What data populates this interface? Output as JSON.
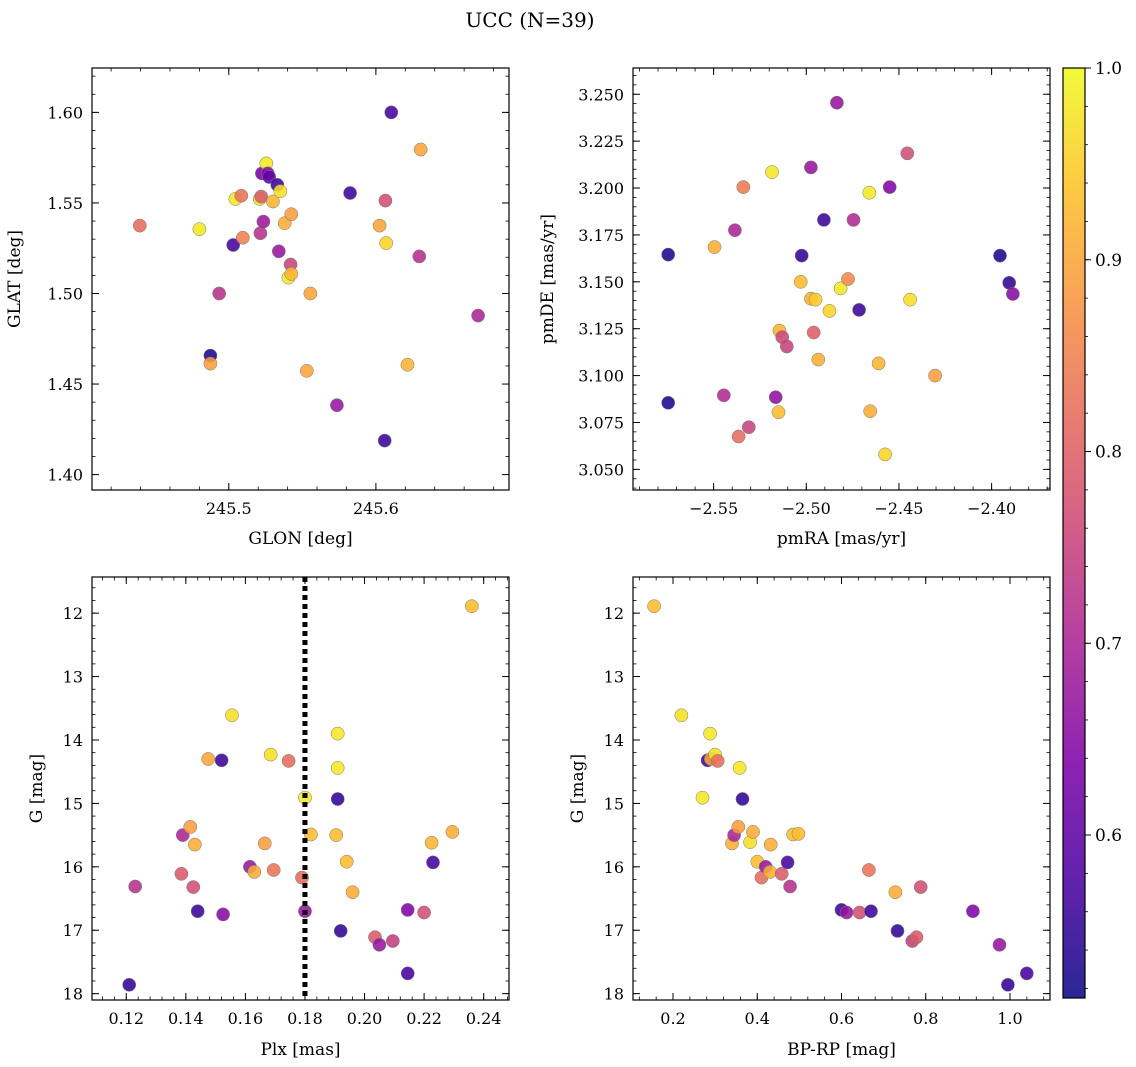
{
  "figure_title": "UCC (N=39)",
  "colors": {
    "colormap": "plasma",
    "background": "#ffffff",
    "axis": "#000000",
    "marker_edge": "#7a7a7a"
  },
  "chart_data": [
    {
      "type": "scatter",
      "xlabel": "GLON [deg]",
      "ylabel": "GLAT [deg]",
      "xlim": [
        245.407,
        245.6905
      ],
      "ylim": [
        1.3915,
        1.6245
      ],
      "xticks": [
        245.5,
        245.6
      ],
      "yticks": [
        1.4,
        1.45,
        1.5,
        1.55,
        1.6
      ],
      "xtick_labels": [
        "245.5",
        "245.6"
      ],
      "ytick_labels": [
        "1.40",
        "1.45",
        "1.50",
        "1.55",
        "1.60"
      ],
      "points": [
        {
          "x": 245.4395,
          "y": 1.5375,
          "c": 0.82
        },
        {
          "x": 245.48,
          "y": 1.5355,
          "c": 0.98
        },
        {
          "x": 245.4875,
          "y": 1.4657,
          "c": 0.53
        },
        {
          "x": 245.4875,
          "y": 1.4613,
          "c": 0.89
        },
        {
          "x": 245.4935,
          "y": 1.5,
          "c": 0.72
        },
        {
          "x": 245.503,
          "y": 1.5268,
          "c": 0.57
        },
        {
          "x": 245.5045,
          "y": 1.5522,
          "c": 0.98
        },
        {
          "x": 245.5085,
          "y": 1.554,
          "c": 0.83
        },
        {
          "x": 245.5095,
          "y": 1.5308,
          "c": 0.85
        },
        {
          "x": 245.521,
          "y": 1.5522,
          "c": 0.97
        },
        {
          "x": 245.5215,
          "y": 1.5333,
          "c": 0.72
        },
        {
          "x": 245.522,
          "y": 1.5535,
          "c": 0.79
        },
        {
          "x": 245.5225,
          "y": 1.5663,
          "c": 0.63
        },
        {
          "x": 245.5235,
          "y": 1.5397,
          "c": 0.68
        },
        {
          "x": 245.5255,
          "y": 1.5718,
          "c": 0.98
        },
        {
          "x": 245.5265,
          "y": 1.5663,
          "c": 0.65
        },
        {
          "x": 245.5275,
          "y": 1.5643,
          "c": 0.6
        },
        {
          "x": 245.53,
          "y": 1.5508,
          "c": 0.92
        },
        {
          "x": 245.533,
          "y": 1.56,
          "c": 0.56
        },
        {
          "x": 245.534,
          "y": 1.5233,
          "c": 0.67
        },
        {
          "x": 245.535,
          "y": 1.5565,
          "c": 0.97
        },
        {
          "x": 245.538,
          "y": 1.5388,
          "c": 0.91
        },
        {
          "x": 245.5405,
          "y": 1.5088,
          "c": 0.98
        },
        {
          "x": 245.542,
          "y": 1.516,
          "c": 0.75
        },
        {
          "x": 245.5425,
          "y": 1.5108,
          "c": 0.92
        },
        {
          "x": 245.5425,
          "y": 1.5438,
          "c": 0.89
        },
        {
          "x": 245.553,
          "y": 1.4573,
          "c": 0.9
        },
        {
          "x": 245.5555,
          "y": 1.5,
          "c": 0.9
        },
        {
          "x": 245.5735,
          "y": 1.4383,
          "c": 0.67
        },
        {
          "x": 245.5825,
          "y": 1.5555,
          "c": 0.56
        },
        {
          "x": 245.6025,
          "y": 1.5375,
          "c": 0.9
        },
        {
          "x": 245.606,
          "y": 1.4188,
          "c": 0.56
        },
        {
          "x": 245.6065,
          "y": 1.5513,
          "c": 0.77
        },
        {
          "x": 245.607,
          "y": 1.5278,
          "c": 0.96
        },
        {
          "x": 245.6105,
          "y": 1.6,
          "c": 0.57
        },
        {
          "x": 245.6215,
          "y": 1.4607,
          "c": 0.92
        },
        {
          "x": 245.6295,
          "y": 1.5205,
          "c": 0.72
        },
        {
          "x": 245.6305,
          "y": 1.5795,
          "c": 0.9
        },
        {
          "x": 245.6695,
          "y": 1.4878,
          "c": 0.7
        }
      ]
    },
    {
      "type": "scatter",
      "xlabel": "pmRA [mas/yr]",
      "ylabel": "pmDE [mas/yr]",
      "xlim": [
        -2.5935,
        -2.3685
      ],
      "ylim": [
        3.039,
        3.264
      ],
      "xticks": [
        -2.55,
        -2.5,
        -2.45,
        -2.4
      ],
      "yticks": [
        3.05,
        3.075,
        3.1,
        3.125,
        3.15,
        3.175,
        3.2,
        3.225,
        3.25
      ],
      "xtick_labels": [
        "−2.55",
        "−2.50",
        "−2.45",
        "−2.40"
      ],
      "ytick_labels": [
        "3.050",
        "3.075",
        "3.100",
        "3.125",
        "3.150",
        "3.175",
        "3.200",
        "3.225",
        "3.250"
      ],
      "points": [
        {
          "x": -2.5745,
          "y": 3.1645,
          "c": 0.53
        },
        {
          "x": -2.5745,
          "y": 3.0855,
          "c": 0.53
        },
        {
          "x": -2.5495,
          "y": 3.1685,
          "c": 0.91
        },
        {
          "x": -2.5445,
          "y": 3.0895,
          "c": 0.71
        },
        {
          "x": -2.5385,
          "y": 3.1775,
          "c": 0.7
        },
        {
          "x": -2.5365,
          "y": 3.0675,
          "c": 0.82
        },
        {
          "x": -2.534,
          "y": 3.2005,
          "c": 0.84
        },
        {
          "x": -2.531,
          "y": 3.0725,
          "c": 0.75
        },
        {
          "x": -2.5185,
          "y": 3.2085,
          "c": 0.98
        },
        {
          "x": -2.5165,
          "y": 3.0885,
          "c": 0.66
        },
        {
          "x": -2.515,
          "y": 3.0805,
          "c": 0.93
        },
        {
          "x": -2.5145,
          "y": 3.124,
          "c": 0.92
        },
        {
          "x": -2.513,
          "y": 3.1205,
          "c": 0.76
        },
        {
          "x": -2.5105,
          "y": 3.1155,
          "c": 0.75
        },
        {
          "x": -2.503,
          "y": 3.15,
          "c": 0.93
        },
        {
          "x": -2.5025,
          "y": 3.164,
          "c": 0.55
        },
        {
          "x": -2.4975,
          "y": 3.141,
          "c": 0.91
        },
        {
          "x": -2.4975,
          "y": 3.211,
          "c": 0.67
        },
        {
          "x": -2.496,
          "y": 3.123,
          "c": 0.8
        },
        {
          "x": -2.495,
          "y": 3.1405,
          "c": 0.95
        },
        {
          "x": -2.4935,
          "y": 3.1085,
          "c": 0.91
        },
        {
          "x": -2.4905,
          "y": 3.183,
          "c": 0.56
        },
        {
          "x": -2.4875,
          "y": 3.1345,
          "c": 0.96
        },
        {
          "x": -2.4835,
          "y": 3.2455,
          "c": 0.67
        },
        {
          "x": -2.4815,
          "y": 3.1465,
          "c": 0.98
        },
        {
          "x": -2.4775,
          "y": 3.1515,
          "c": 0.86
        },
        {
          "x": -2.4745,
          "y": 3.183,
          "c": 0.71
        },
        {
          "x": -2.4715,
          "y": 3.135,
          "c": 0.56
        },
        {
          "x": -2.466,
          "y": 3.1975,
          "c": 0.98
        },
        {
          "x": -2.4655,
          "y": 3.081,
          "c": 0.91
        },
        {
          "x": -2.461,
          "y": 3.1065,
          "c": 0.92
        },
        {
          "x": -2.4575,
          "y": 3.058,
          "c": 0.96
        },
        {
          "x": -2.455,
          "y": 3.2005,
          "c": 0.64
        },
        {
          "x": -2.4455,
          "y": 3.2185,
          "c": 0.77
        },
        {
          "x": -2.444,
          "y": 3.1405,
          "c": 0.97
        },
        {
          "x": -2.4305,
          "y": 3.1,
          "c": 0.89
        },
        {
          "x": -2.3955,
          "y": 3.164,
          "c": 0.53
        },
        {
          "x": -2.3905,
          "y": 3.1495,
          "c": 0.55
        },
        {
          "x": -2.3885,
          "y": 3.1435,
          "c": 0.65
        }
      ]
    },
    {
      "type": "scatter",
      "xlabel": "Plx [mas]",
      "ylabel": "G [mag]",
      "xlim": [
        0.1085,
        0.2485
      ],
      "ylim": [
        18.1,
        11.43
      ],
      "y_inverted": true,
      "xticks": [
        0.12,
        0.14,
        0.16,
        0.18,
        0.2,
        0.22,
        0.24
      ],
      "yticks": [
        12,
        13,
        14,
        15,
        16,
        17,
        18
      ],
      "xtick_labels": [
        "0.12",
        "0.14",
        "0.16",
        "0.18",
        "0.20",
        "0.22",
        "0.24"
      ],
      "ytick_labels": [
        "12",
        "13",
        "14",
        "15",
        "16",
        "17",
        "18"
      ],
      "vline": {
        "x": 0.18,
        "style": "dotted"
      },
      "points": [
        {
          "x": 0.121,
          "y": 17.86,
          "c": 0.55
        },
        {
          "x": 0.123,
          "y": 16.31,
          "c": 0.72
        },
        {
          "x": 0.1385,
          "y": 16.11,
          "c": 0.79
        },
        {
          "x": 0.139,
          "y": 15.5,
          "c": 0.7
        },
        {
          "x": 0.1415,
          "y": 15.37,
          "c": 0.89
        },
        {
          "x": 0.1425,
          "y": 16.32,
          "c": 0.77
        },
        {
          "x": 0.143,
          "y": 15.65,
          "c": 0.91
        },
        {
          "x": 0.144,
          "y": 16.7,
          "c": 0.56
        },
        {
          "x": 0.1475,
          "y": 14.3,
          "c": 0.9
        },
        {
          "x": 0.152,
          "y": 14.32,
          "c": 0.56
        },
        {
          "x": 0.1525,
          "y": 16.75,
          "c": 0.65
        },
        {
          "x": 0.1555,
          "y": 13.61,
          "c": 0.97
        },
        {
          "x": 0.1615,
          "y": 16.0,
          "c": 0.67
        },
        {
          "x": 0.163,
          "y": 16.08,
          "c": 0.91
        },
        {
          "x": 0.1665,
          "y": 15.63,
          "c": 0.89
        },
        {
          "x": 0.1685,
          "y": 14.23,
          "c": 0.97
        },
        {
          "x": 0.1695,
          "y": 16.05,
          "c": 0.83
        },
        {
          "x": 0.1745,
          "y": 14.33,
          "c": 0.82
        },
        {
          "x": 0.179,
          "y": 16.17,
          "c": 0.82
        },
        {
          "x": 0.18,
          "y": 14.91,
          "c": 0.98
        },
        {
          "x": 0.18,
          "y": 16.7,
          "c": 0.67
        },
        {
          "x": 0.182,
          "y": 15.49,
          "c": 0.93
        },
        {
          "x": 0.1905,
          "y": 15.5,
          "c": 0.93
        },
        {
          "x": 0.191,
          "y": 14.93,
          "c": 0.55
        },
        {
          "x": 0.191,
          "y": 13.9,
          "c": 0.98
        },
        {
          "x": 0.191,
          "y": 14.44,
          "c": 0.98
        },
        {
          "x": 0.192,
          "y": 17.01,
          "c": 0.55
        },
        {
          "x": 0.194,
          "y": 15.92,
          "c": 0.93
        },
        {
          "x": 0.196,
          "y": 16.4,
          "c": 0.91
        },
        {
          "x": 0.2035,
          "y": 17.11,
          "c": 0.79
        },
        {
          "x": 0.205,
          "y": 17.23,
          "c": 0.67
        },
        {
          "x": 0.2095,
          "y": 17.17,
          "c": 0.74
        },
        {
          "x": 0.2145,
          "y": 16.68,
          "c": 0.64
        },
        {
          "x": 0.2145,
          "y": 17.68,
          "c": 0.57
        },
        {
          "x": 0.22,
          "y": 16.72,
          "c": 0.77
        },
        {
          "x": 0.2225,
          "y": 15.62,
          "c": 0.92
        },
        {
          "x": 0.223,
          "y": 15.93,
          "c": 0.57
        },
        {
          "x": 0.2295,
          "y": 15.45,
          "c": 0.91
        },
        {
          "x": 0.236,
          "y": 11.89,
          "c": 0.93
        }
      ]
    },
    {
      "type": "scatter",
      "xlabel": "BP-RP [mag]",
      "ylabel": "G [mag]",
      "xlim": [
        0.105,
        1.095
      ],
      "ylim": [
        18.1,
        11.43
      ],
      "y_inverted": true,
      "xticks": [
        0.2,
        0.4,
        0.6,
        0.8,
        1.0
      ],
      "yticks": [
        12,
        13,
        14,
        15,
        16,
        17,
        18
      ],
      "xtick_labels": [
        "0.2",
        "0.4",
        "0.6",
        "0.8",
        "1.0"
      ],
      "ytick_labels": [
        "12",
        "13",
        "14",
        "15",
        "16",
        "17",
        "18"
      ],
      "points": [
        {
          "x": 0.155,
          "y": 11.89,
          "c": 0.93
        },
        {
          "x": 0.22,
          "y": 13.61,
          "c": 0.97
        },
        {
          "x": 0.27,
          "y": 14.91,
          "c": 0.98
        },
        {
          "x": 0.282,
          "y": 14.32,
          "c": 0.56
        },
        {
          "x": 0.288,
          "y": 13.9,
          "c": 0.98
        },
        {
          "x": 0.29,
          "y": 14.3,
          "c": 0.9
        },
        {
          "x": 0.3,
          "y": 14.23,
          "c": 0.97
        },
        {
          "x": 0.306,
          "y": 14.33,
          "c": 0.82
        },
        {
          "x": 0.34,
          "y": 15.63,
          "c": 0.91
        },
        {
          "x": 0.345,
          "y": 15.5,
          "c": 0.7
        },
        {
          "x": 0.355,
          "y": 15.37,
          "c": 0.89
        },
        {
          "x": 0.358,
          "y": 14.44,
          "c": 0.98
        },
        {
          "x": 0.365,
          "y": 14.93,
          "c": 0.55
        },
        {
          "x": 0.383,
          "y": 15.61,
          "c": 0.97
        },
        {
          "x": 0.39,
          "y": 15.45,
          "c": 0.91
        },
        {
          "x": 0.4,
          "y": 15.92,
          "c": 0.93
        },
        {
          "x": 0.41,
          "y": 16.17,
          "c": 0.82
        },
        {
          "x": 0.42,
          "y": 16.0,
          "c": 0.67
        },
        {
          "x": 0.43,
          "y": 16.08,
          "c": 0.91
        },
        {
          "x": 0.432,
          "y": 15.65,
          "c": 0.91
        },
        {
          "x": 0.458,
          "y": 16.11,
          "c": 0.79
        },
        {
          "x": 0.472,
          "y": 15.93,
          "c": 0.57
        },
        {
          "x": 0.478,
          "y": 16.31,
          "c": 0.72
        },
        {
          "x": 0.485,
          "y": 15.49,
          "c": 0.93
        },
        {
          "x": 0.498,
          "y": 15.48,
          "c": 0.93
        },
        {
          "x": 0.6,
          "y": 16.68,
          "c": 0.56
        },
        {
          "x": 0.612,
          "y": 16.72,
          "c": 0.67
        },
        {
          "x": 0.643,
          "y": 16.72,
          "c": 0.77
        },
        {
          "x": 0.665,
          "y": 16.05,
          "c": 0.83
        },
        {
          "x": 0.67,
          "y": 16.7,
          "c": 0.56
        },
        {
          "x": 0.728,
          "y": 16.4,
          "c": 0.91
        },
        {
          "x": 0.733,
          "y": 17.01,
          "c": 0.55
        },
        {
          "x": 0.768,
          "y": 17.17,
          "c": 0.74
        },
        {
          "x": 0.778,
          "y": 17.11,
          "c": 0.79
        },
        {
          "x": 0.788,
          "y": 16.32,
          "c": 0.77
        },
        {
          "x": 0.912,
          "y": 16.7,
          "c": 0.64
        },
        {
          "x": 0.975,
          "y": 17.23,
          "c": 0.67
        },
        {
          "x": 0.995,
          "y": 17.86,
          "c": 0.55
        },
        {
          "x": 1.04,
          "y": 17.68,
          "c": 0.57
        }
      ]
    }
  ],
  "colorbar": {
    "range": [
      0.515,
      1.0
    ],
    "ticks": [
      0.6,
      0.7,
      0.8,
      0.9,
      1.0
    ],
    "tick_labels": [
      "0.6",
      "0.7",
      "0.8",
      "0.9",
      "1.0"
    ]
  }
}
